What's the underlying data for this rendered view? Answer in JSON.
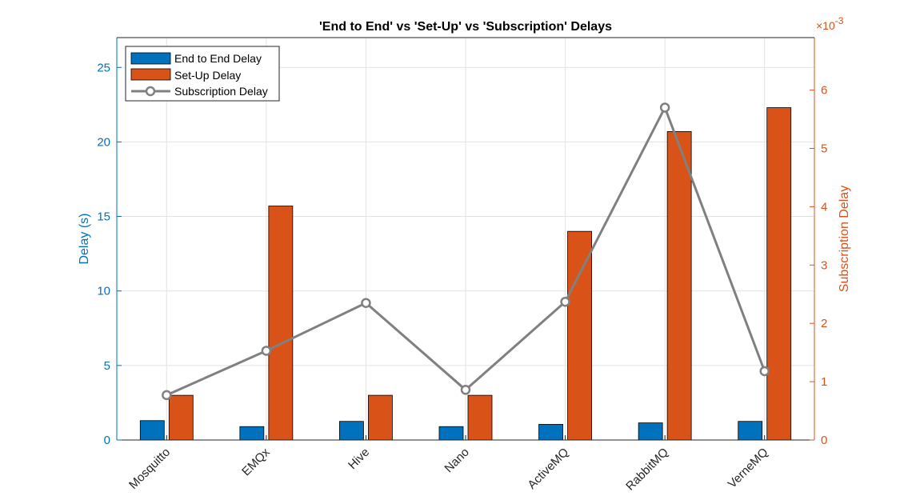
{
  "chart_data": {
    "type": "bar",
    "title": "'End to End' vs 'Set-Up' vs 'Subscription' Delays",
    "categories": [
      "Mosquitto",
      "EMQx",
      "Hive",
      "Nano",
      "ActiveMQ",
      "RabbitMQ",
      "VerneMQ"
    ],
    "ylabel": "Delay (s)",
    "ylim": [
      0,
      27
    ],
    "yticks": [
      0,
      5,
      10,
      15,
      20,
      25
    ],
    "y2label": "Subscription Delay",
    "y2lim": [
      0,
      6.9
    ],
    "y2ticks": [
      0,
      1,
      2,
      3,
      4,
      5,
      6
    ],
    "y2_exponent_label": "×10",
    "y2_exponent_power": "-3",
    "grid": true,
    "legend_position": "top-left",
    "series": [
      {
        "name": "End to End Delay",
        "type": "bar",
        "axis": "left",
        "color": "#0072BD",
        "values": [
          1.3,
          0.9,
          1.25,
          0.9,
          1.05,
          1.15,
          1.25
        ]
      },
      {
        "name": "Set-Up Delay",
        "type": "bar",
        "axis": "left",
        "color": "#D95319",
        "values": [
          3.0,
          15.7,
          3.0,
          3.0,
          14.0,
          20.7,
          22.3
        ]
      },
      {
        "name": "Subscription Delay",
        "type": "line",
        "axis": "right",
        "color": "#808080",
        "marker": "circle",
        "values": [
          0.77,
          1.53,
          2.35,
          0.86,
          2.37,
          5.7,
          1.18
        ]
      }
    ]
  }
}
